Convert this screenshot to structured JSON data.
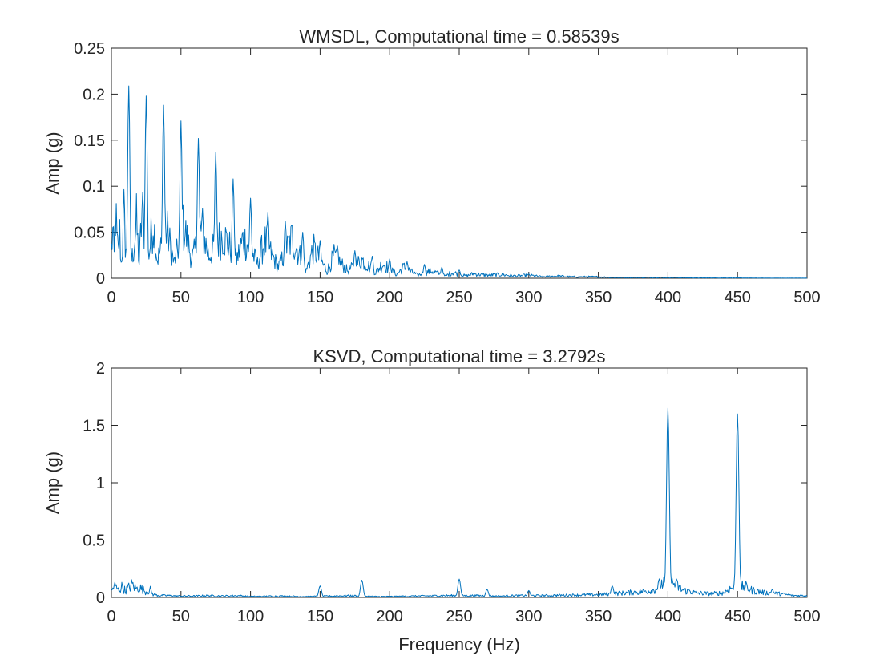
{
  "figure": {
    "background": "#ffffff",
    "axis_color": "#262626",
    "series_color": "#0072BD"
  },
  "chart_data": [
    {
      "type": "line",
      "title": "WMSDL, Computational time = 0.58539s",
      "xlabel": "",
      "ylabel": "Amp (g)",
      "xlim": [
        0,
        500
      ],
      "ylim": [
        0,
        0.25
      ],
      "xticks": [
        0,
        50,
        100,
        150,
        200,
        250,
        300,
        350,
        400,
        450,
        500
      ],
      "yticks": [
        0,
        0.05,
        0.1,
        0.15,
        0.2,
        0.25
      ],
      "xtick_labels": [
        "0",
        "50",
        "100",
        "150",
        "200",
        "250",
        "300",
        "350",
        "400",
        "450",
        "500"
      ],
      "ytick_labels": [
        "0",
        "0.05",
        "0.1",
        "0.15",
        "0.2",
        "0.25"
      ],
      "grid": false,
      "series": [
        {
          "color": "#0072BD",
          "peaks": [
            [
              12.5,
              0.209
            ],
            [
              25,
              0.198
            ],
            [
              37.5,
              0.188
            ],
            [
              50,
              0.171
            ],
            [
              62.5,
              0.152
            ],
            [
              75,
              0.137
            ],
            [
              87.5,
              0.108
            ],
            [
              100,
              0.087
            ],
            [
              112.5,
              0.072
            ],
            [
              125,
              0.062
            ],
            [
              137.5,
              0.05
            ],
            [
              150,
              0.041
            ],
            [
              162.5,
              0.035
            ],
            [
              175,
              0.03
            ],
            [
              187.5,
              0.024
            ],
            [
              200,
              0.021
            ],
            [
              212.5,
              0.018
            ],
            [
              225,
              0.015
            ],
            [
              237.5,
              0.012
            ],
            [
              250,
              0.009
            ]
          ],
          "x": [
            0,
            1,
            2,
            3,
            4,
            5,
            6,
            7,
            8,
            9,
            10,
            11,
            13,
            14,
            16,
            18,
            20,
            22,
            27,
            30,
            33,
            40,
            45,
            52,
            58,
            65,
            70,
            80,
            90,
            95,
            105,
            110,
            120,
            130,
            140,
            145,
            155,
            160,
            170,
            180,
            190,
            195,
            205,
            210,
            220,
            230,
            240,
            245,
            255,
            260,
            270,
            280,
            290,
            300,
            310,
            320,
            330,
            340,
            350,
            360,
            370,
            380,
            390,
            400,
            420,
            440,
            460,
            480,
            500
          ],
          "y": [
            0.04,
            0.06,
            0.03,
            0.092,
            0.05,
            0.035,
            0.06,
            0.02,
            0.045,
            0.085,
            0.05,
            0.03,
            0.05,
            0.02,
            0.04,
            0.075,
            0.02,
            0.09,
            0.03,
            0.08,
            0.025,
            0.065,
            0.02,
            0.07,
            0.025,
            0.068,
            0.03,
            0.06,
            0.025,
            0.055,
            0.02,
            0.05,
            0.015,
            0.055,
            0.01,
            0.04,
            0.01,
            0.03,
            0.01,
            0.025,
            0.008,
            0.02,
            0.005,
            0.015,
            0.004,
            0.01,
            0.003,
            0.008,
            0.003,
            0.006,
            0.004,
            0.005,
            0.003,
            0.004,
            0.002,
            0.003,
            0.002,
            0.002,
            0.002,
            0.001,
            0.001,
            0.001,
            0.001,
            0.001,
            0.0005,
            0.0005,
            0.0003,
            0.0002,
            0.0002
          ]
        }
      ]
    },
    {
      "type": "line",
      "title": "KSVD, Computational time = 3.2792s",
      "xlabel": "Frequency (Hz)",
      "ylabel": "Amp (g)",
      "xlim": [
        0,
        500
      ],
      "ylim": [
        0,
        2
      ],
      "xticks": [
        0,
        50,
        100,
        150,
        200,
        250,
        300,
        350,
        400,
        450,
        500
      ],
      "yticks": [
        0,
        0.5,
        1,
        1.5,
        2
      ],
      "xtick_labels": [
        "0",
        "50",
        "100",
        "150",
        "200",
        "250",
        "300",
        "350",
        "400",
        "450",
        "500"
      ],
      "ytick_labels": [
        "0",
        "0.5",
        "1",
        "1.5",
        "2"
      ],
      "grid": false,
      "series": [
        {
          "color": "#0072BD",
          "peaks": [
            [
              150,
              0.1
            ],
            [
              180,
              0.15
            ],
            [
              250,
              0.16
            ],
            [
              270,
              0.07
            ],
            [
              300,
              0.06
            ],
            [
              360,
              0.1
            ],
            [
              400,
              1.65
            ],
            [
              415,
              0.07
            ],
            [
              450,
              1.6
            ],
            [
              475,
              0.07
            ]
          ],
          "x": [
            0,
            2,
            5,
            8,
            10,
            12,
            15,
            18,
            20,
            25,
            28,
            30,
            35,
            40,
            50,
            60,
            70,
            80,
            90,
            100,
            120,
            140,
            160,
            170,
            190,
            200,
            220,
            240,
            260,
            280,
            290,
            310,
            330,
            350,
            370,
            380,
            390,
            395,
            405,
            410,
            420,
            430,
            440,
            445,
            455,
            460,
            470,
            480,
            490,
            500
          ],
          "y": [
            0.06,
            0.13,
            0.08,
            0.12,
            0.07,
            0.1,
            0.14,
            0.09,
            0.11,
            0.06,
            0.08,
            0.03,
            0.02,
            0.02,
            0.015,
            0.015,
            0.02,
            0.015,
            0.02,
            0.01,
            0.015,
            0.01,
            0.015,
            0.02,
            0.01,
            0.01,
            0.015,
            0.02,
            0.02,
            0.015,
            0.02,
            0.02,
            0.025,
            0.03,
            0.05,
            0.06,
            0.08,
            0.15,
            0.15,
            0.08,
            0.05,
            0.04,
            0.05,
            0.1,
            0.12,
            0.08,
            0.05,
            0.04,
            0.02,
            0.02
          ]
        }
      ]
    }
  ]
}
